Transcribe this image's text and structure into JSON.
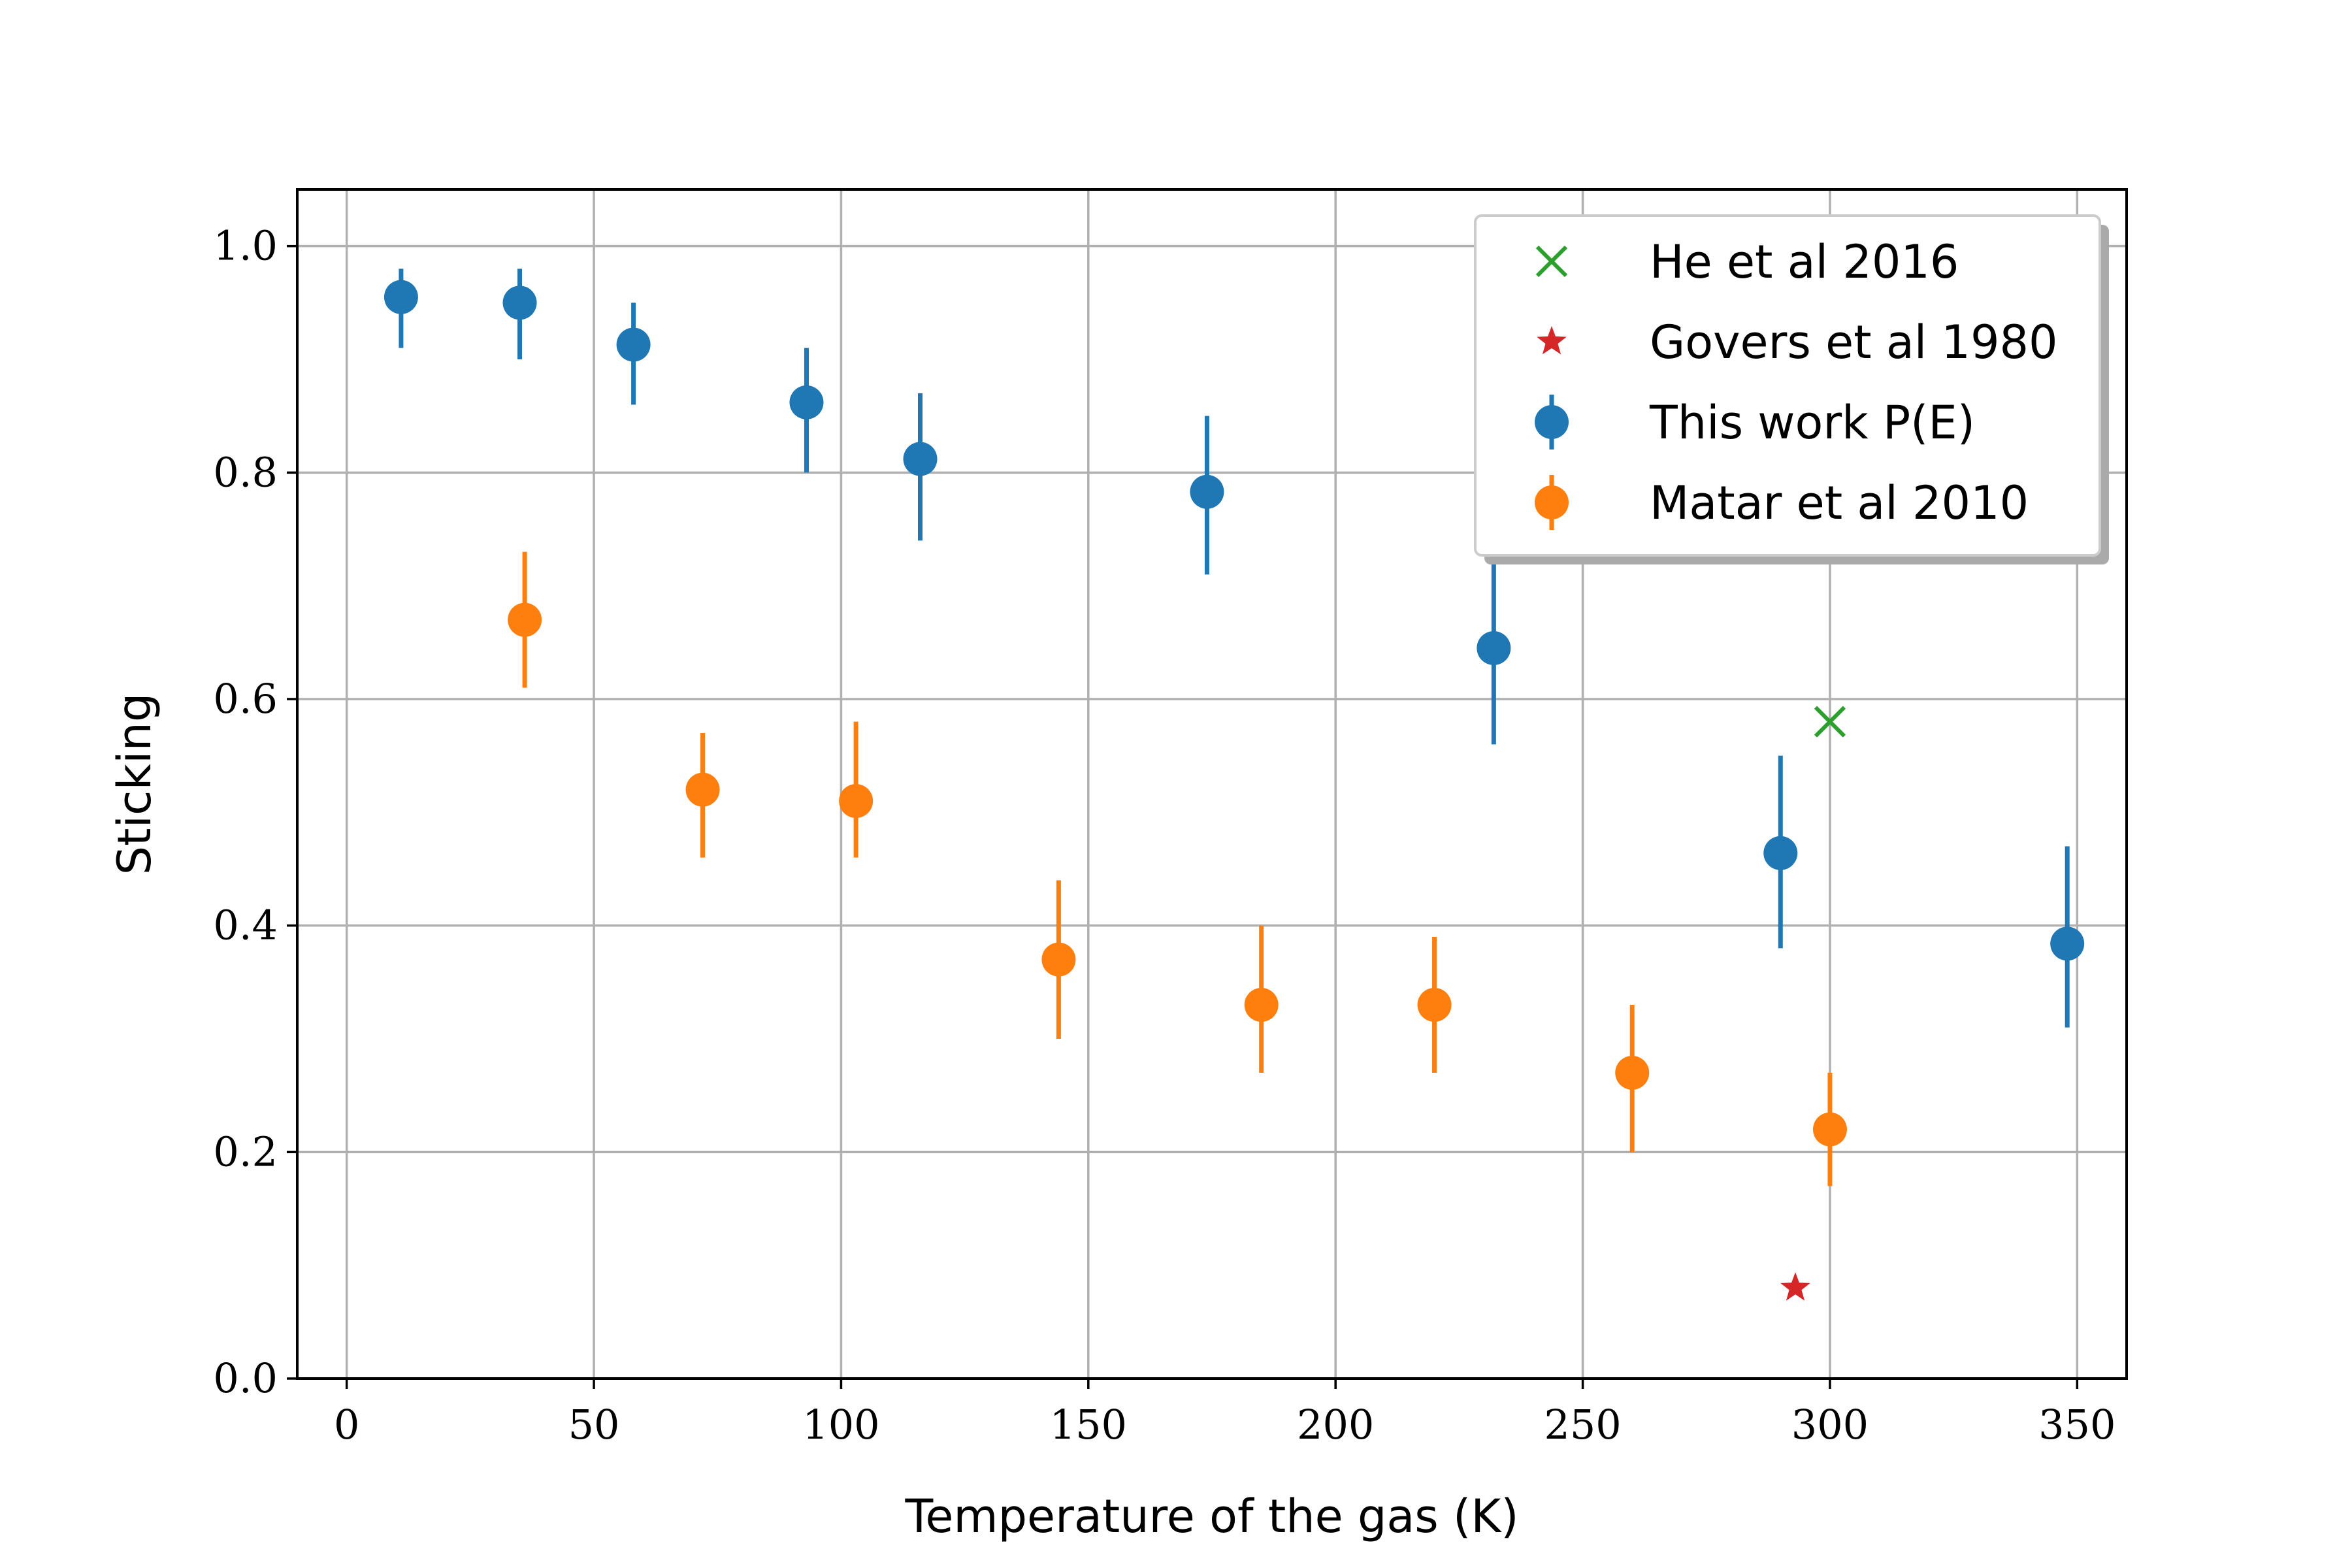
{
  "chart_data": {
    "type": "scatter",
    "title": "",
    "xlabel": "Temperature of the gas (K)",
    "ylabel": "Sticking",
    "xlim": [
      -10,
      360
    ],
    "ylim": [
      0,
      1.05
    ],
    "xticks": [
      0,
      50,
      100,
      150,
      200,
      250,
      300,
      350
    ],
    "yticks": [
      0.0,
      0.2,
      0.4,
      0.6,
      0.8,
      1.0
    ],
    "xtick_labels": [
      "0",
      "50",
      "100",
      "150",
      "200",
      "250",
      "300",
      "350"
    ],
    "ytick_labels": [
      "0.0",
      "0.2",
      "0.4",
      "0.6",
      "0.8",
      "1.0"
    ],
    "grid": true,
    "legend_position": "top-right",
    "series": [
      {
        "name": "He et al 2016",
        "marker": "x",
        "color": "#2ca02c",
        "points": [
          {
            "x": 300,
            "y": 0.58
          }
        ]
      },
      {
        "name": "Govers et al 1980",
        "marker": "star",
        "color": "#d62728",
        "points": [
          {
            "x": 293,
            "y": 0.08
          }
        ]
      },
      {
        "name": "This work P(E)",
        "marker": "circle",
        "color": "#1f77b4",
        "points": [
          {
            "x": 11,
            "y": 0.955,
            "ylow": 0.91,
            "yhigh": 0.98
          },
          {
            "x": 35,
            "y": 0.95,
            "ylow": 0.9,
            "yhigh": 0.98
          },
          {
            "x": 58,
            "y": 0.913,
            "ylow": 0.86,
            "yhigh": 0.95
          },
          {
            "x": 93,
            "y": 0.862,
            "ylow": 0.8,
            "yhigh": 0.91
          },
          {
            "x": 116,
            "y": 0.812,
            "ylow": 0.74,
            "yhigh": 0.87
          },
          {
            "x": 174,
            "y": 0.783,
            "ylow": 0.71,
            "yhigh": 0.85
          },
          {
            "x": 232,
            "y": 0.645,
            "ylow": 0.56,
            "yhigh": 0.73
          },
          {
            "x": 290,
            "y": 0.464,
            "ylow": 0.38,
            "yhigh": 0.55
          },
          {
            "x": 348,
            "y": 0.384,
            "ylow": 0.31,
            "yhigh": 0.47
          }
        ]
      },
      {
        "name": "Matar et al 2010",
        "marker": "circle",
        "color": "#ff7f0e",
        "points": [
          {
            "x": 36,
            "y": 0.67,
            "ylow": 0.61,
            "yhigh": 0.73
          },
          {
            "x": 72,
            "y": 0.52,
            "ylow": 0.46,
            "yhigh": 0.57
          },
          {
            "x": 103,
            "y": 0.51,
            "ylow": 0.46,
            "yhigh": 0.58
          },
          {
            "x": 144,
            "y": 0.37,
            "ylow": 0.3,
            "yhigh": 0.44
          },
          {
            "x": 185,
            "y": 0.33,
            "ylow": 0.27,
            "yhigh": 0.4
          },
          {
            "x": 220,
            "y": 0.33,
            "ylow": 0.27,
            "yhigh": 0.39
          },
          {
            "x": 260,
            "y": 0.27,
            "ylow": 0.2,
            "yhigh": 0.33
          },
          {
            "x": 300,
            "y": 0.22,
            "ylow": 0.17,
            "yhigh": 0.27
          }
        ]
      }
    ]
  }
}
